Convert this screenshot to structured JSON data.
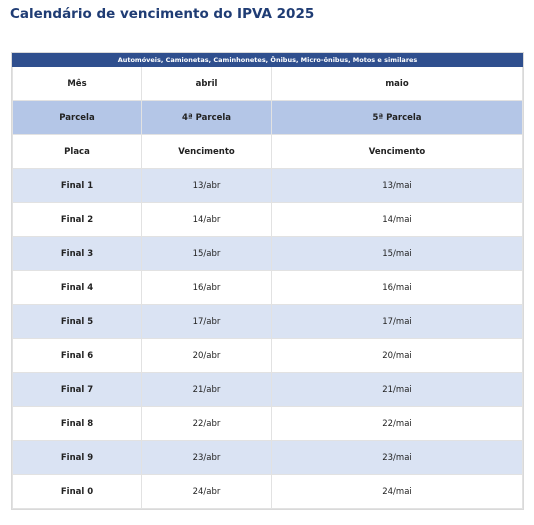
{
  "header": {
    "title": "Calendário de vencimento do IPVA 2025"
  },
  "table": {
    "banner": "Automóveis, Camionetas, Caminhonetes, Ônibus, Micro-ônibus, Motos e similares",
    "rows": [
      [
        "Mês",
        "abril",
        "maio"
      ],
      [
        "Parcela",
        "4ª Parcela",
        "5ª Parcela"
      ],
      [
        "Placa",
        "Vencimento",
        "Vencimento"
      ],
      [
        "Final 1",
        "13/abr",
        "13/mai"
      ],
      [
        "Final 2",
        "14/abr",
        "14/mai"
      ],
      [
        "Final 3",
        "15/abr",
        "15/mai"
      ],
      [
        "Final 4",
        "16/abr",
        "16/mai"
      ],
      [
        "Final 5",
        "17/abr",
        "17/mai"
      ],
      [
        "Final 6",
        "20/abr",
        "20/mai"
      ],
      [
        "Final 7",
        "21/abr",
        "21/mai"
      ],
      [
        "Final 8",
        "22/abr",
        "22/mai"
      ],
      [
        "Final 9",
        "23/abr",
        "23/mai"
      ],
      [
        "Final 0",
        "24/abr",
        "24/mai"
      ]
    ]
  }
}
